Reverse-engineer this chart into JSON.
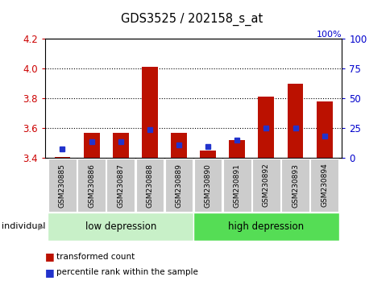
{
  "title": "GDS3525 / 202158_s_at",
  "samples": [
    "GSM230885",
    "GSM230886",
    "GSM230887",
    "GSM230888",
    "GSM230889",
    "GSM230890",
    "GSM230891",
    "GSM230892",
    "GSM230893",
    "GSM230894"
  ],
  "red_values": [
    3.41,
    3.57,
    3.57,
    4.01,
    3.57,
    3.45,
    3.52,
    3.81,
    3.9,
    3.78
  ],
  "blue_values": [
    3.46,
    3.51,
    3.51,
    3.59,
    3.49,
    3.48,
    3.52,
    3.6,
    3.6,
    3.55
  ],
  "ymin": 3.4,
  "ymax": 4.2,
  "yticks_red": [
    3.4,
    3.6,
    3.8,
    4.0,
    4.2
  ],
  "yticks_blue": [
    0,
    25,
    50,
    75,
    100
  ],
  "groups": [
    {
      "label": "low depression",
      "start": 0,
      "end": 5,
      "color": "#c8f0c8"
    },
    {
      "label": "high depression",
      "start": 5,
      "end": 10,
      "color": "#55dd55"
    }
  ],
  "bar_color_red": "#bb1100",
  "bar_color_blue": "#2233cc",
  "bar_width": 0.55,
  "tick_color_left": "#cc0000",
  "tick_color_right": "#0000cc",
  "legend_red": "transformed count",
  "legend_blue": "percentile rank within the sample",
  "individual_label": "individual",
  "sample_box_color": "#cccccc",
  "grid_lines": [
    3.6,
    3.8,
    4.0
  ]
}
